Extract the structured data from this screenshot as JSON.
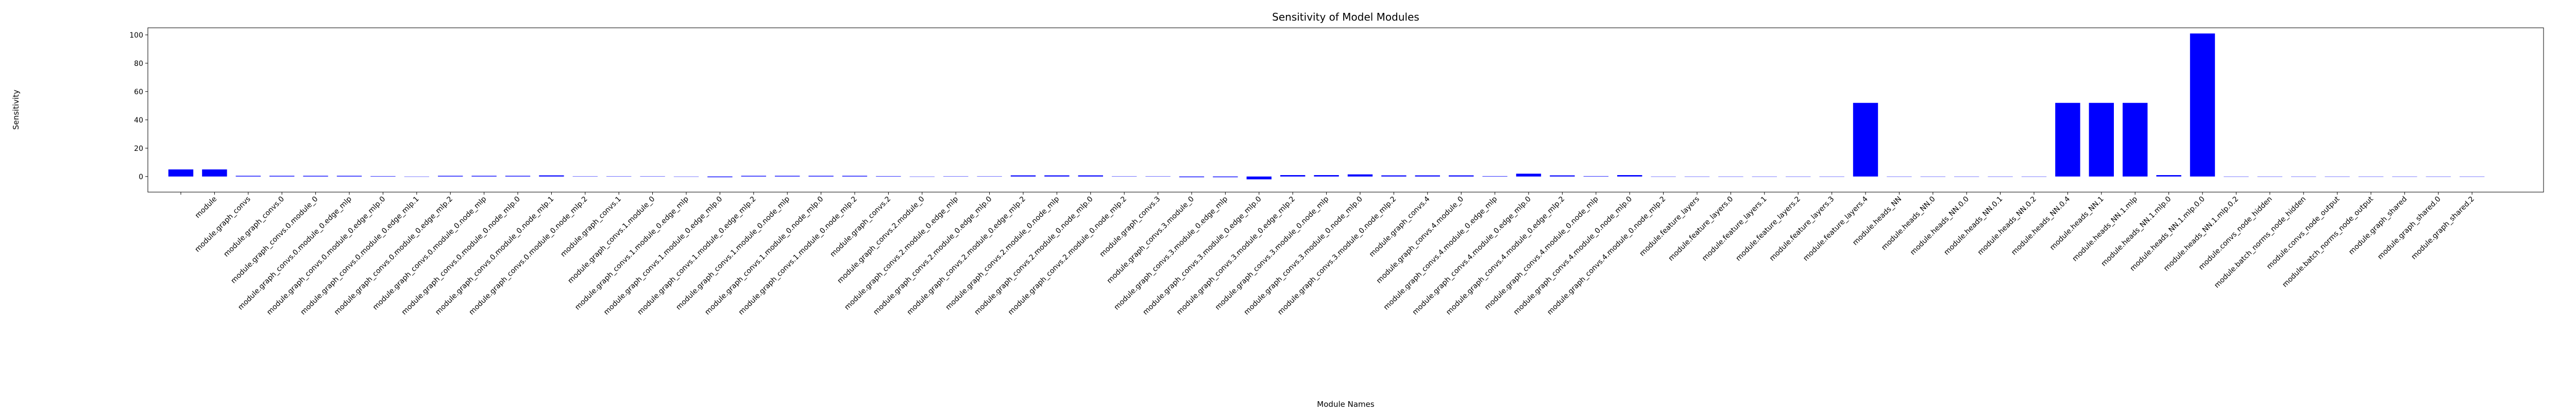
{
  "chart_data": {
    "type": "bar",
    "title": "Sensitivity of Model Modules",
    "x_label": "Module Names",
    "y_label": "Sensitivity",
    "color": "#0000ff",
    "grid": false,
    "ylim": [
      -11,
      105
    ],
    "yticks": [
      0,
      20,
      40,
      60,
      80,
      100
    ],
    "categories": [
      null,
      "module",
      "module.graph_convs",
      "module.graph_convs.0",
      "module.graph_convs.0.module_0",
      "module.graph_convs.0.module_0.edge_mlp",
      "module.graph_convs.0.module_0.edge_mlp.0",
      "module.graph_convs.0.module_0.edge_mlp.1",
      "module.graph_convs.0.module_0.edge_mlp.2",
      "module.graph_convs.0.module_0.node_mlp",
      "module.graph_convs.0.module_0.node_mlp.0",
      "module.graph_convs.0.module_0.node_mlp.1",
      "module.graph_convs.0.module_0.node_mlp.2",
      "module.graph_convs.1",
      "module.graph_convs.1.module_0",
      "module.graph_convs.1.module_0.edge_mlp",
      "module.graph_convs.1.module_0.edge_mlp.0",
      "module.graph_convs.1.module_0.edge_mlp.2",
      "module.graph_convs.1.module_0.node_mlp",
      "module.graph_convs.1.module_0.node_mlp.0",
      "module.graph_convs.1.module_0.node_mlp.2",
      "module.graph_convs.2",
      "module.graph_convs.2.module_0",
      "module.graph_convs.2.module_0.edge_mlp",
      "module.graph_convs.2.module_0.edge_mlp.0",
      "module.graph_convs.2.module_0.edge_mlp.2",
      "module.graph_convs.2.module_0.node_mlp",
      "module.graph_convs.2.module_0.node_mlp.0",
      "module.graph_convs.2.module_0.node_mlp.2",
      "module.graph_convs.3",
      "module.graph_convs.3.module_0",
      "module.graph_convs.3.module_0.edge_mlp",
      "module.graph_convs.3.module_0.edge_mlp.0",
      "module.graph_convs.3.module_0.edge_mlp.2",
      "module.graph_convs.3.module_0.node_mlp",
      "module.graph_convs.3.module_0.node_mlp.0",
      "module.graph_convs.3.module_0.node_mlp.2",
      "module.graph_convs.4",
      "module.graph_convs.4.module_0",
      "module.graph_convs.4.module_0.edge_mlp",
      "module.graph_convs.4.module_0.edge_mlp.0",
      "module.graph_convs.4.module_0.edge_mlp.2",
      "module.graph_convs.4.module_0.node_mlp",
      "module.graph_convs.4.module_0.node_mlp.0",
      "module.graph_convs.4.module_0.node_mlp.2",
      "module.feature_layers",
      "module.feature_layers.0",
      "module.feature_layers.1",
      "module.feature_layers.2",
      "module.feature_layers.3",
      "module.feature_layers.4",
      "module.heads_NN",
      "module.heads_NN.0",
      "module.heads_NN.0.0",
      "module.heads_NN.0.1",
      "module.heads_NN.0.2",
      "module.heads_NN.0.4",
      "module.heads_NN.1",
      "module.heads_NN.1.mlp",
      "module.heads_NN.1.mlp.0",
      "module.heads_NN.1.mlp.0.0",
      "module.heads_NN.1.mlp.0.2",
      "module.convs_node_hidden",
      "module.batch_norms_node_hidden",
      "module.convs_node_output",
      "module.batch_norms_node_output",
      "module.graph_shared",
      "module.graph_shared.0",
      "module.graph_shared.2"
    ],
    "values": [
      5,
      5,
      0.5,
      0.5,
      0.5,
      0.5,
      0.3,
      0,
      0.5,
      0.5,
      0.5,
      0.8,
      0.2,
      0.2,
      0.2,
      0,
      -0.5,
      0.5,
      0.5,
      0.5,
      0.5,
      0.3,
      0,
      0.2,
      0.2,
      0.8,
      0.8,
      0.8,
      0.2,
      0.2,
      -0.5,
      -0.5,
      -2,
      1,
      1,
      1.5,
      0.8,
      0.8,
      0.8,
      0.3,
      2,
      0.8,
      0.3,
      1,
      0,
      0,
      0,
      0,
      0,
      0,
      52,
      0,
      0,
      0,
      0,
      0,
      52,
      52,
      52,
      1,
      101,
      0,
      0,
      0,
      0,
      0,
      0,
      0,
      0
    ]
  }
}
